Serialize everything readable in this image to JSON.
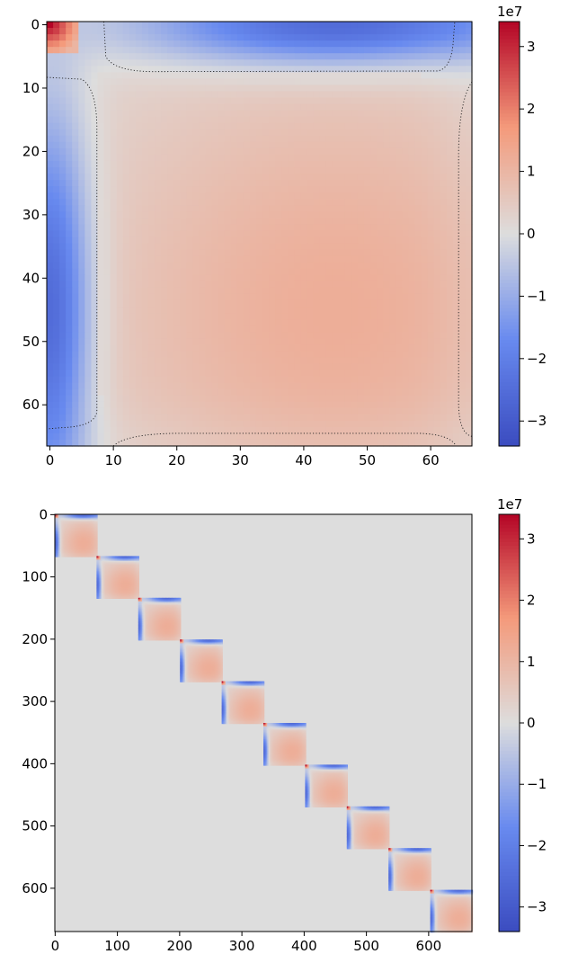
{
  "colors": {
    "cmap_low": "#3b4cc0",
    "cmap_mid": "#dddddd",
    "cmap_high": "#b40426",
    "contour": "#222222",
    "background": "#ffffff"
  },
  "chart_data": [
    {
      "type": "heatmap",
      "title": "",
      "xlabel": "",
      "ylabel": "",
      "matrix_size": 67,
      "xlim": [
        -0.5,
        66.5
      ],
      "ylim": [
        66.5,
        -0.5
      ],
      "x_ticks": [
        0,
        10,
        20,
        30,
        40,
        50,
        60
      ],
      "y_ticks": [
        0,
        10,
        20,
        30,
        40,
        50,
        60
      ],
      "x_tick_labels": [
        "0",
        "10",
        "20",
        "30",
        "40",
        "50",
        "60"
      ],
      "y_tick_labels": [
        "0",
        "10",
        "20",
        "30",
        "40",
        "50",
        "60"
      ],
      "value_peaks": {
        "corner_max": 34000000.0,
        "center_value": 10000000.0,
        "center_location": [
          45,
          45
        ],
        "edge_min": -30000000.0
      },
      "zero_contour": "dotted",
      "colorbar": {
        "exponent_label": "1e7",
        "vmin": -3.4,
        "vmax": 3.4,
        "ticks": [
          3,
          2,
          1,
          0,
          -1,
          -2,
          -3
        ],
        "tick_labels": [
          "3",
          "2",
          "1",
          "0",
          "−1",
          "−2",
          "−3"
        ]
      }
    },
    {
      "type": "heatmap",
      "title": "",
      "xlabel": "",
      "ylabel": "",
      "matrix_size": 670,
      "block_count": 10,
      "block_size": 67,
      "block_structure": "block-diagonal",
      "xlim": [
        -0.5,
        669.5
      ],
      "ylim": [
        669.5,
        -0.5
      ],
      "x_ticks": [
        0,
        100,
        200,
        300,
        400,
        500,
        600
      ],
      "y_ticks": [
        0,
        100,
        200,
        300,
        400,
        500,
        600
      ],
      "x_tick_labels": [
        "0",
        "100",
        "200",
        "300",
        "400",
        "500",
        "600"
      ],
      "y_tick_labels": [
        "0",
        "100",
        "200",
        "300",
        "400",
        "500",
        "600"
      ],
      "colorbar": {
        "exponent_label": "1e7",
        "vmin": -3.4,
        "vmax": 3.4,
        "ticks": [
          3,
          2,
          1,
          0,
          -1,
          -2,
          -3
        ],
        "tick_labels": [
          "3",
          "2",
          "1",
          "0",
          "−1",
          "−2",
          "−3"
        ]
      }
    }
  ]
}
